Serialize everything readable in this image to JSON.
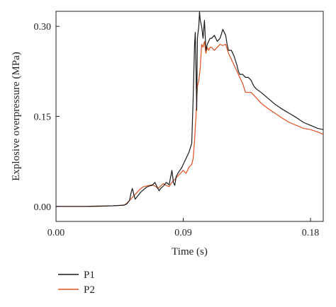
{
  "chart_data": {
    "type": "line",
    "title": "",
    "xlabel": "Time (s)",
    "ylabel": "Explosive overpressure (MPa)",
    "xlim": [
      0,
      0.189
    ],
    "ylim": [
      -0.025,
      0.325
    ],
    "xticks": [
      {
        "value": 0.0,
        "label": "0.00"
      },
      {
        "value": 0.09,
        "label": "0.09"
      },
      {
        "value": 0.18,
        "label": "0.18"
      }
    ],
    "yticks": [
      {
        "value": 0.0,
        "label": "0.00"
      },
      {
        "value": 0.15,
        "label": "0.15"
      },
      {
        "value": 0.3,
        "label": "0.30"
      }
    ],
    "grid": false,
    "legend_position": "bottom-left",
    "series": [
      {
        "name": "P1",
        "color": "#1a1a1a",
        "x": [
          0,
          0.02,
          0.03,
          0.04,
          0.048,
          0.05,
          0.052,
          0.053,
          0.054,
          0.055,
          0.056,
          0.058,
          0.06,
          0.062,
          0.064,
          0.066,
          0.068,
          0.07,
          0.072,
          0.073,
          0.074,
          0.076,
          0.078,
          0.08,
          0.082,
          0.083,
          0.084,
          0.085,
          0.087,
          0.089,
          0.09,
          0.092,
          0.094,
          0.096,
          0.097,
          0.098,
          0.0985,
          0.099,
          0.0995,
          0.1,
          0.101,
          0.1015,
          0.102,
          0.103,
          0.104,
          0.105,
          0.106,
          0.107,
          0.108,
          0.109,
          0.11,
          0.112,
          0.114,
          0.116,
          0.118,
          0.12,
          0.121,
          0.122,
          0.124,
          0.126,
          0.128,
          0.129,
          0.13,
          0.132,
          0.134,
          0.136,
          0.138,
          0.14,
          0.142,
          0.145,
          0.15,
          0.155,
          0.16,
          0.165,
          0.17,
          0.175,
          0.18,
          0.185,
          0.189
        ],
        "y": [
          0,
          0,
          0.0005,
          0.001,
          0.002,
          0.004,
          0.01,
          0.022,
          0.03,
          0.02,
          0.012,
          0.018,
          0.024,
          0.028,
          0.032,
          0.034,
          0.035,
          0.04,
          0.03,
          0.026,
          0.03,
          0.034,
          0.04,
          0.036,
          0.06,
          0.04,
          0.035,
          0.05,
          0.058,
          0.065,
          0.07,
          0.08,
          0.09,
          0.105,
          0.18,
          0.27,
          0.29,
          0.23,
          0.16,
          0.28,
          0.3,
          0.325,
          0.31,
          0.3,
          0.28,
          0.31,
          0.26,
          0.27,
          0.275,
          0.28,
          0.28,
          0.285,
          0.275,
          0.28,
          0.295,
          0.285,
          0.27,
          0.26,
          0.26,
          0.25,
          0.235,
          0.225,
          0.22,
          0.22,
          0.215,
          0.215,
          0.21,
          0.2,
          0.195,
          0.19,
          0.18,
          0.17,
          0.162,
          0.155,
          0.148,
          0.14,
          0.135,
          0.13,
          0.128
        ]
      },
      {
        "name": "P2",
        "color": "#e0501e",
        "x": [
          0,
          0.02,
          0.03,
          0.04,
          0.048,
          0.05,
          0.052,
          0.054,
          0.056,
          0.058,
          0.06,
          0.062,
          0.064,
          0.066,
          0.068,
          0.07,
          0.072,
          0.074,
          0.076,
          0.078,
          0.08,
          0.082,
          0.084,
          0.086,
          0.088,
          0.09,
          0.092,
          0.094,
          0.096,
          0.097,
          0.098,
          0.099,
          0.1,
          0.101,
          0.102,
          0.103,
          0.104,
          0.105,
          0.106,
          0.107,
          0.108,
          0.109,
          0.11,
          0.112,
          0.114,
          0.116,
          0.118,
          0.12,
          0.122,
          0.124,
          0.126,
          0.128,
          0.13,
          0.132,
          0.134,
          0.136,
          0.138,
          0.14,
          0.142,
          0.145,
          0.15,
          0.155,
          0.16,
          0.165,
          0.17,
          0.175,
          0.18,
          0.185,
          0.189
        ],
        "y": [
          0,
          0,
          0,
          0.001,
          0.002,
          0.005,
          0.01,
          0.015,
          0.02,
          0.025,
          0.03,
          0.033,
          0.034,
          0.035,
          0.036,
          0.034,
          0.03,
          0.034,
          0.038,
          0.035,
          0.033,
          0.04,
          0.045,
          0.05,
          0.055,
          0.06,
          0.055,
          0.065,
          0.07,
          0.08,
          0.11,
          0.15,
          0.2,
          0.21,
          0.23,
          0.27,
          0.265,
          0.275,
          0.255,
          0.265,
          0.26,
          0.265,
          0.265,
          0.26,
          0.265,
          0.27,
          0.268,
          0.27,
          0.255,
          0.245,
          0.235,
          0.225,
          0.215,
          0.205,
          0.19,
          0.19,
          0.19,
          0.185,
          0.18,
          0.172,
          0.163,
          0.155,
          0.147,
          0.14,
          0.135,
          0.13,
          0.128,
          0.124,
          0.12
        ]
      }
    ]
  }
}
